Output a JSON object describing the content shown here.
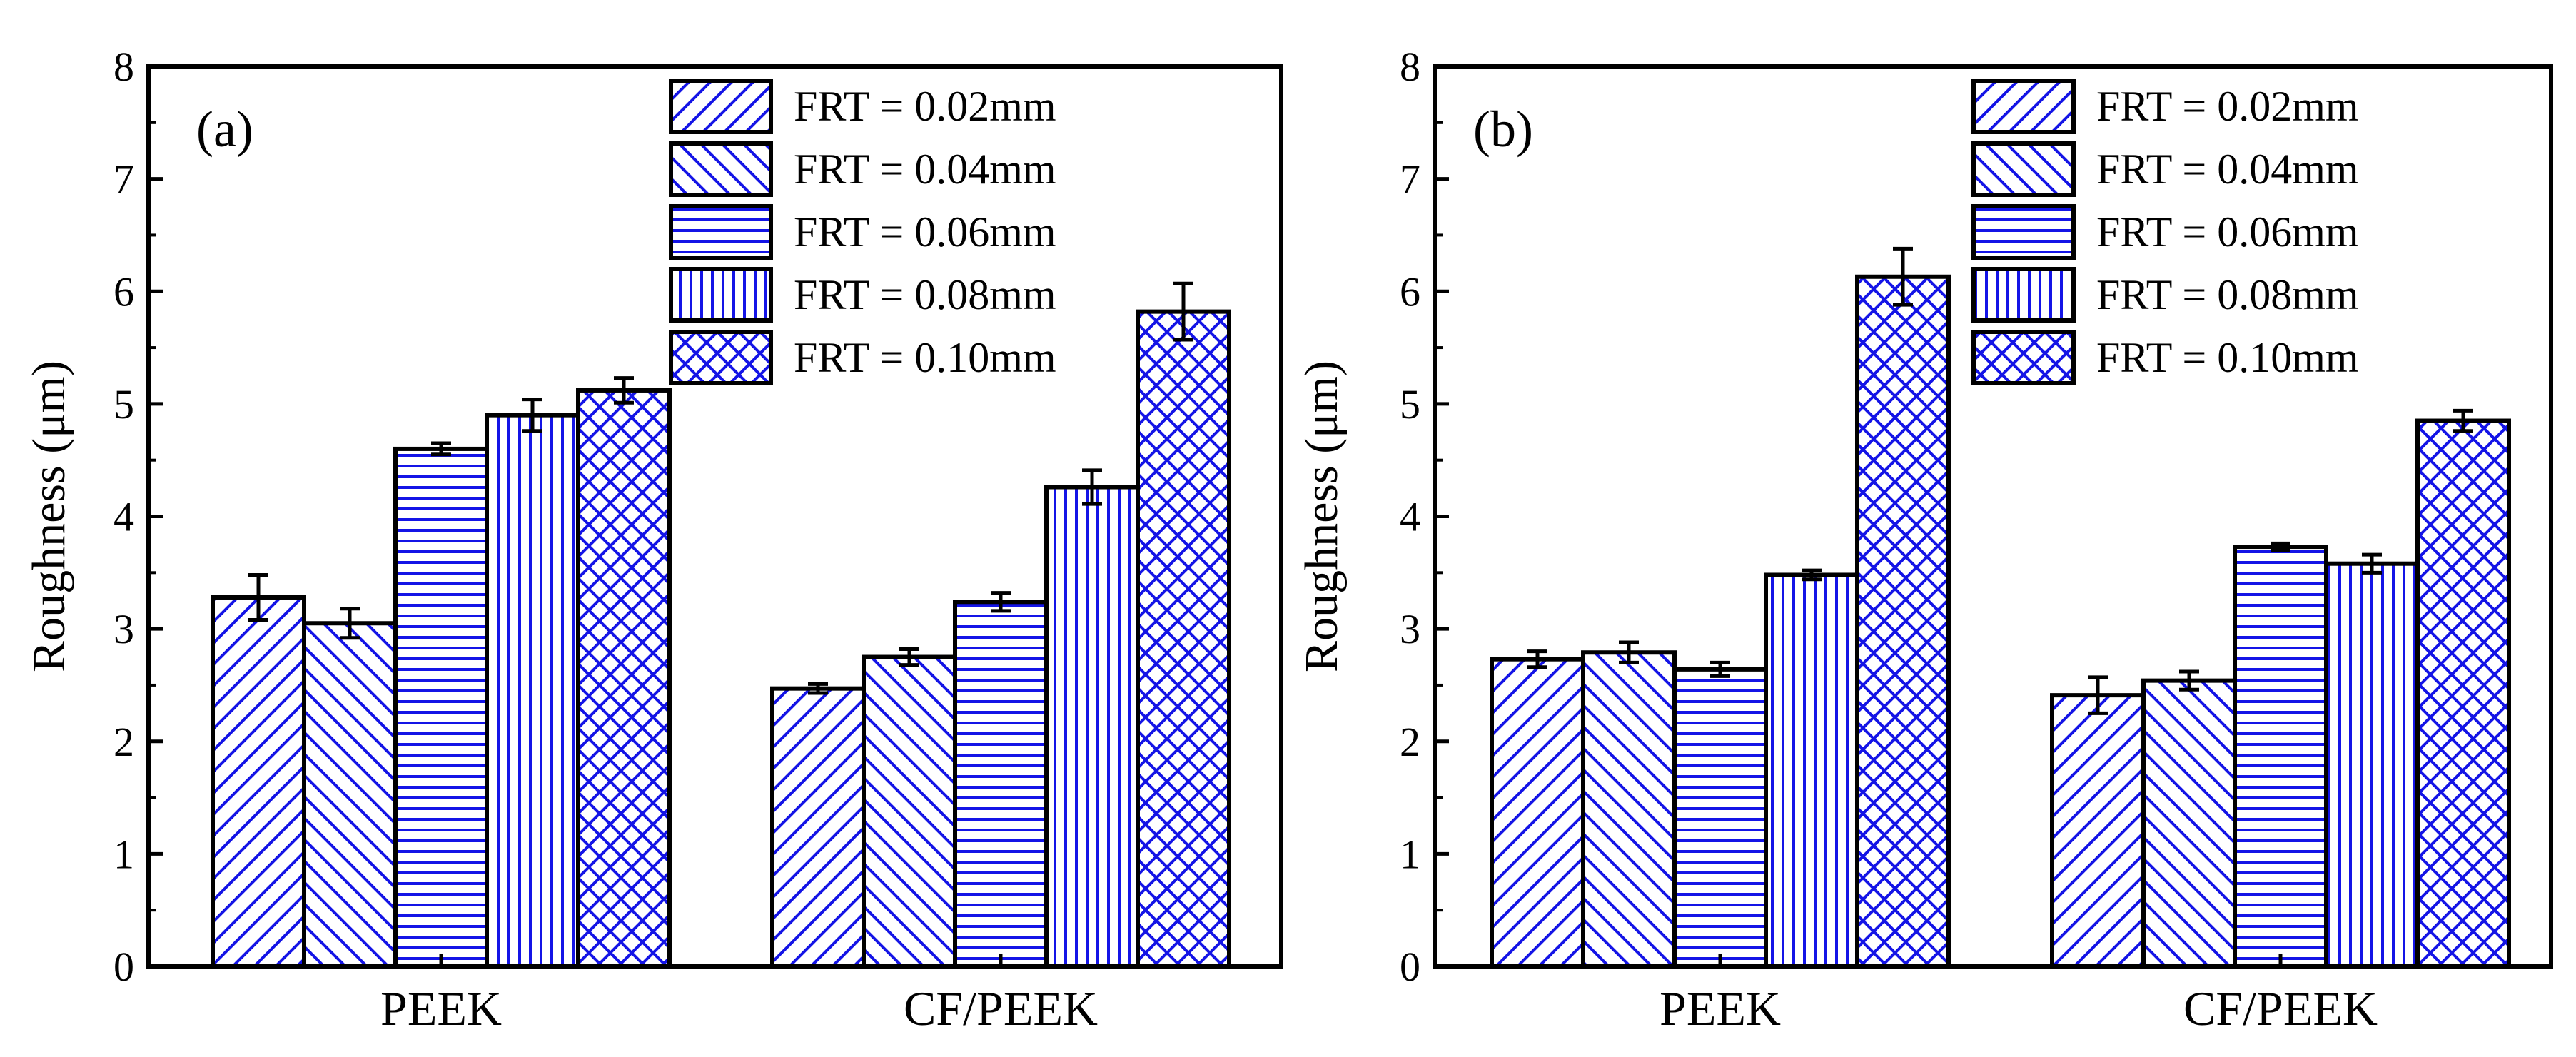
{
  "chart_data": [
    {
      "type": "bar",
      "panel_label": "(a)",
      "ylabel": "Roughness (μm)",
      "xlabel": "",
      "ylim": [
        0,
        8
      ],
      "yticks": [
        "0",
        "1",
        "2",
        "3",
        "4",
        "5",
        "6",
        "7",
        "8"
      ],
      "categories": [
        "PEEK",
        "CF/PEEK"
      ],
      "legend_position": "top-right",
      "grid": false,
      "series": [
        {
          "name": "FRT = 0.02mm",
          "pattern": "diag-up",
          "values": [
            3.28,
            2.47
          ],
          "errors": [
            0.2,
            0.04
          ]
        },
        {
          "name": "FRT = 0.04mm",
          "pattern": "diag-down",
          "values": [
            3.05,
            2.75
          ],
          "errors": [
            0.13,
            0.07
          ]
        },
        {
          "name": "FRT = 0.06mm",
          "pattern": "horizontal",
          "values": [
            4.6,
            3.24
          ],
          "errors": [
            0.05,
            0.08
          ]
        },
        {
          "name": "FRT = 0.08mm",
          "pattern": "vertical",
          "values": [
            4.9,
            4.26
          ],
          "errors": [
            0.14,
            0.15
          ]
        },
        {
          "name": "FRT = 0.10mm",
          "pattern": "crosshatch",
          "values": [
            5.12,
            5.82
          ],
          "errors": [
            0.11,
            0.25
          ]
        }
      ]
    },
    {
      "type": "bar",
      "panel_label": "(b)",
      "ylabel": "Roughness (μm)",
      "xlabel": "",
      "ylim": [
        0,
        8
      ],
      "yticks": [
        "0",
        "1",
        "2",
        "3",
        "4",
        "5",
        "6",
        "7",
        "8"
      ],
      "categories": [
        "PEEK",
        "CF/PEEK"
      ],
      "legend_position": "top-right",
      "grid": false,
      "series": [
        {
          "name": "FRT = 0.02mm",
          "pattern": "diag-up",
          "values": [
            2.73,
            2.41
          ],
          "errors": [
            0.07,
            0.16
          ]
        },
        {
          "name": "FRT = 0.04mm",
          "pattern": "diag-down",
          "values": [
            2.79,
            2.54
          ],
          "errors": [
            0.09,
            0.08
          ]
        },
        {
          "name": "FRT = 0.06mm",
          "pattern": "horizontal",
          "values": [
            2.64,
            3.73
          ],
          "errors": [
            0.06,
            0.03
          ]
        },
        {
          "name": "FRT = 0.08mm",
          "pattern": "vertical",
          "values": [
            3.48,
            3.58
          ],
          "errors": [
            0.04,
            0.08
          ]
        },
        {
          "name": "FRT = 0.10mm",
          "pattern": "crosshatch",
          "values": [
            6.13,
            4.85
          ],
          "errors": [
            0.25,
            0.09
          ]
        }
      ]
    }
  ],
  "colors": {
    "bar_fill": "#ffffff",
    "hatch": "#1414e6",
    "outline": "#000000",
    "axis": "#000000"
  }
}
